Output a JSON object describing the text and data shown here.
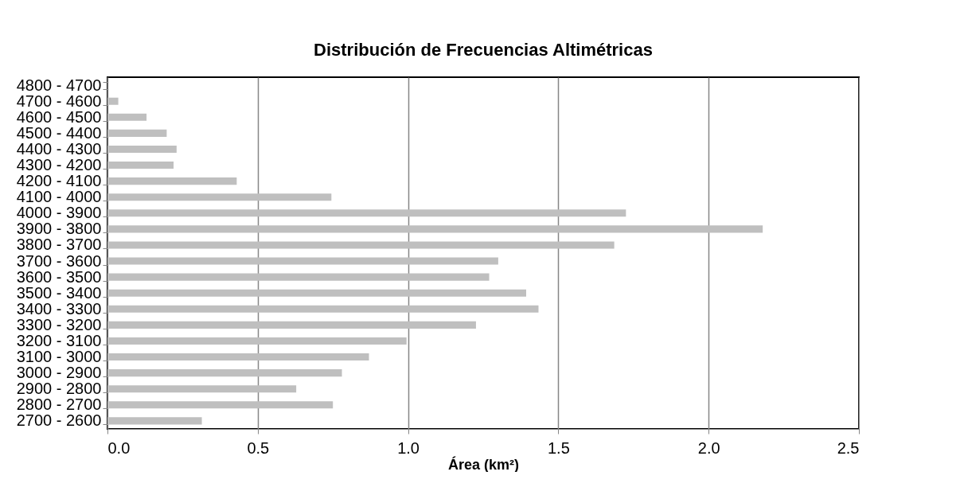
{
  "chart_data": {
    "type": "bar",
    "orientation": "horizontal",
    "title": "Distribución de Frecuencias Altimétricas",
    "xlabel": "Área (km²)",
    "categories": [
      "4800 - 4700",
      "4700 - 4600",
      "4600 - 4500",
      "4500 - 4400",
      "4400 - 4300",
      "4300 - 4200",
      "4200 - 4100",
      "4100 - 4000",
      "4000 - 3900",
      "3900 - 3800",
      "3800 - 3700",
      "3700 - 3600",
      "3600 - 3500",
      "3500 - 3400",
      "3400 - 3300",
      "3300 - 3200",
      "3200 - 3100",
      "3100 - 3000",
      "3000 - 2900",
      "2900 - 2800",
      "2800 - 2700",
      "2700 - 2600"
    ],
    "values": [
      0,
      0.036,
      0.13,
      0.197,
      0.23,
      0.22,
      0.43,
      0.745,
      1.725,
      2.18,
      1.686,
      1.3,
      1.27,
      1.393,
      1.434,
      1.226,
      0.995,
      0.87,
      0.78,
      0.628,
      0.75,
      0.314
    ],
    "color": "#bfbfbf",
    "xlim": [
      0,
      2.5
    ],
    "xticks": [
      {
        "value": 0,
        "label": "0.0"
      },
      {
        "value": 0.5,
        "label": "0.5"
      },
      {
        "value": 1,
        "label": "1.0"
      },
      {
        "value": 1.5,
        "label": "1.5"
      },
      {
        "value": 2,
        "label": "2.0"
      },
      {
        "value": 2.5,
        "label": "2.5"
      }
    ],
    "grid": "x"
  }
}
